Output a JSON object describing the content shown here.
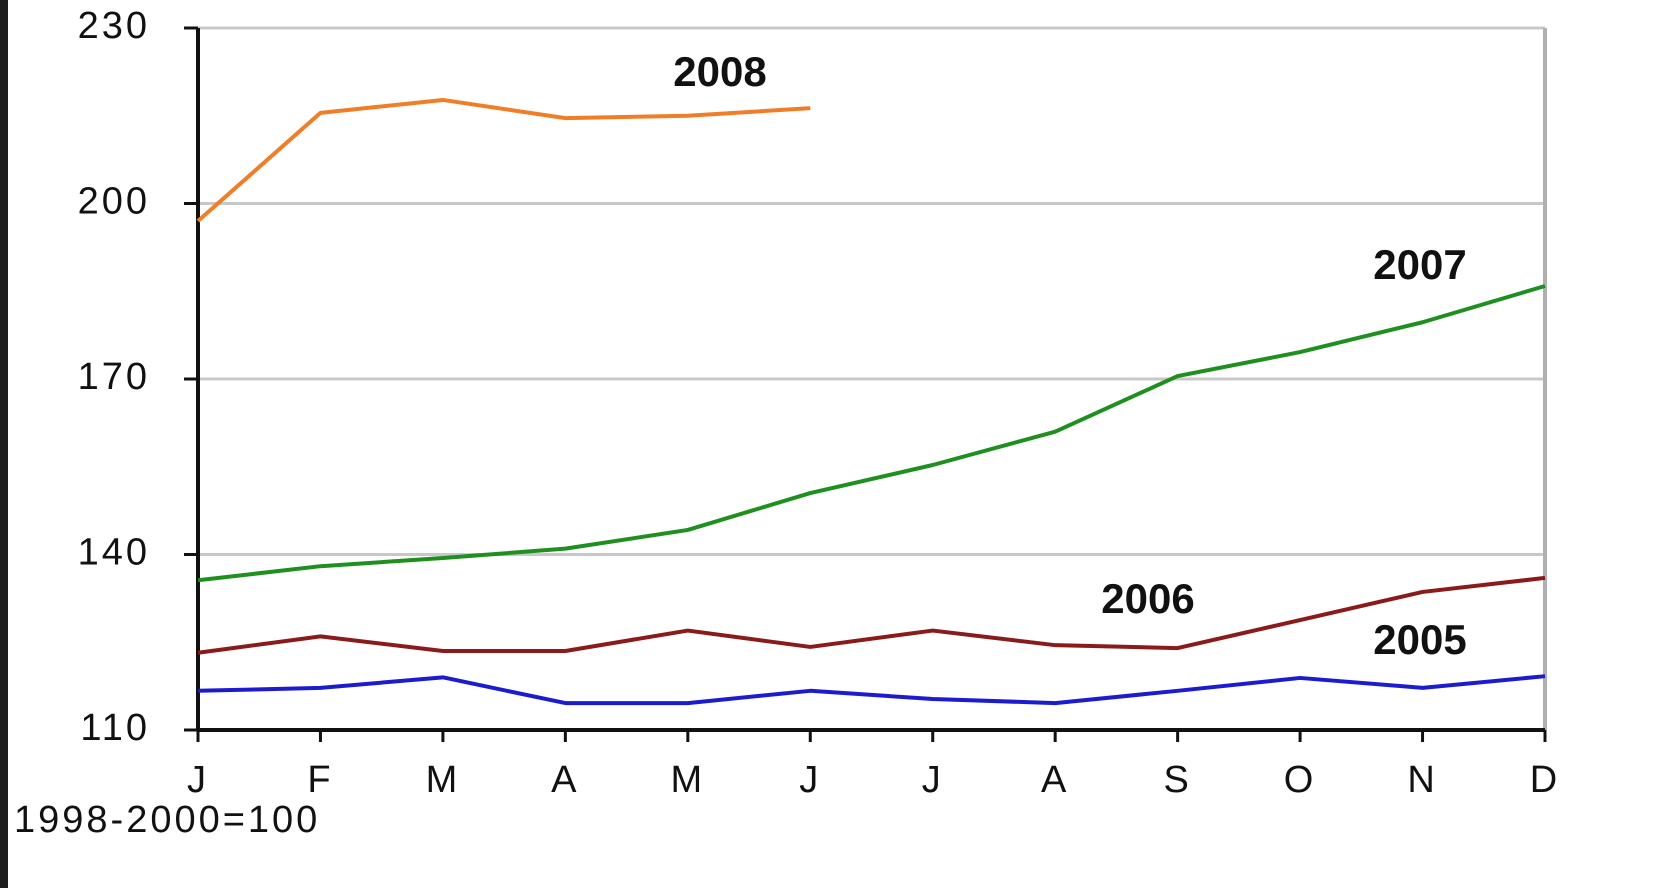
{
  "chart_data": {
    "type": "line",
    "categories": [
      "J",
      "F",
      "M",
      "A",
      "M",
      "J",
      "J",
      "A",
      "S",
      "O",
      "N",
      "D"
    ],
    "series": [
      {
        "name": "2008",
        "color": "#f07d28",
        "values": [
          197,
          215.5,
          217.7,
          214.6,
          215,
          216.3,
          null,
          null,
          null,
          null,
          null,
          null
        ]
      },
      {
        "name": "2007",
        "color": "#1f8f1f",
        "values": [
          135.6,
          138,
          139.4,
          141,
          144.2,
          150.5,
          155.3,
          161,
          170.5,
          174.6,
          179.7,
          185.9
        ]
      },
      {
        "name": "2006",
        "color": "#8b1a1a",
        "values": [
          123.2,
          126,
          123.5,
          123.5,
          127,
          124.2,
          127,
          124.5,
          124,
          128.8,
          133.6,
          136
        ]
      },
      {
        "name": "2005",
        "color": "#1c1ccf",
        "values": [
          116.7,
          117.2,
          119,
          114.6,
          114.6,
          116.7,
          115.3,
          114.6,
          116.7,
          118.9,
          117.2,
          119.2
        ]
      }
    ],
    "ylim": [
      110,
      230
    ],
    "yticks": [
      110,
      140,
      170,
      200,
      230
    ],
    "grid": true,
    "note": "1998-2000=100"
  }
}
